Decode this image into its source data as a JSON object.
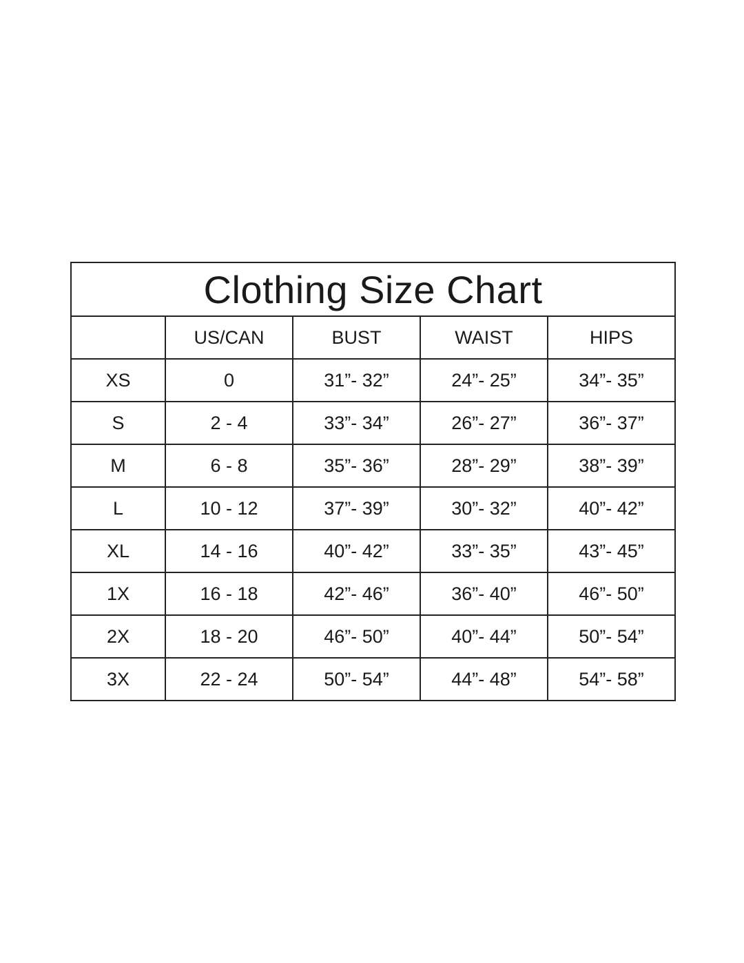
{
  "title": "Clothing Size Chart",
  "columns": [
    "",
    "US/CAN",
    "BUST",
    "WAIST",
    "HIPS"
  ],
  "rows": [
    [
      "XS",
      "0",
      "31”- 32”",
      "24”- 25”",
      "34”- 35”"
    ],
    [
      "S",
      "2 - 4",
      "33”- 34”",
      "26”- 27”",
      "36”- 37”"
    ],
    [
      "M",
      "6 - 8",
      "35”- 36”",
      "28”- 29”",
      "38”- 39”"
    ],
    [
      "L",
      "10 - 12",
      "37”- 39”",
      "30”- 32”",
      "40”- 42”"
    ],
    [
      "XL",
      "14 - 16",
      "40”- 42”",
      "33”- 35”",
      "43”- 45”"
    ],
    [
      "1X",
      "16 - 18",
      "42”- 46”",
      "36”- 40”",
      "46”- 50”"
    ],
    [
      "2X",
      "18 - 20",
      "46”- 50”",
      "40”- 44”",
      "50”- 54”"
    ],
    [
      "3X",
      "22 - 24",
      "50”- 54”",
      "44”- 48”",
      "54”- 58”"
    ]
  ]
}
